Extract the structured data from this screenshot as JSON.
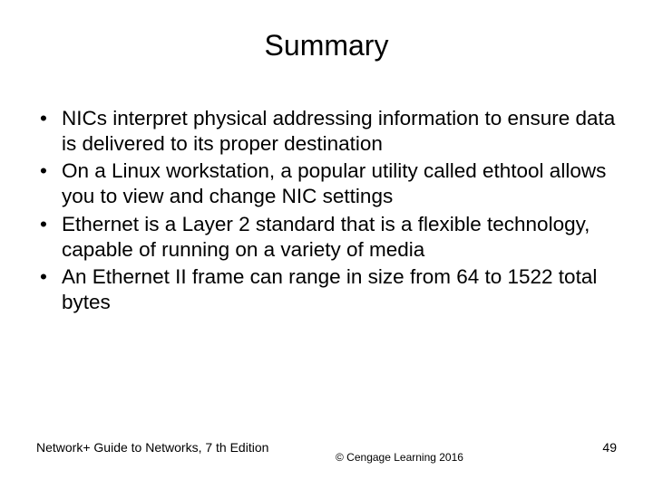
{
  "slide": {
    "title": "Summary",
    "bullets": [
      "NICs interpret physical addressing information to ensure data is delivered to its proper destination",
      "On a Linux workstation, a popular utility called ethtool allows you to view and change NIC settings",
      "Ethernet is a Layer 2 standard that is a flexible technology, capable of running on a variety of media",
      "An Ethernet II frame can range in size from 64 to 1522 total bytes"
    ],
    "footer": {
      "left": "Network+ Guide to Networks, 7 th Edition",
      "center": "© Cengage Learning  2016",
      "page": "49"
    }
  },
  "style": {
    "background_color": "#ffffff",
    "text_color": "#000000",
    "title_fontsize": 32,
    "body_fontsize": 22.5,
    "footer_fontsize": 14,
    "font_family": "Arial"
  }
}
